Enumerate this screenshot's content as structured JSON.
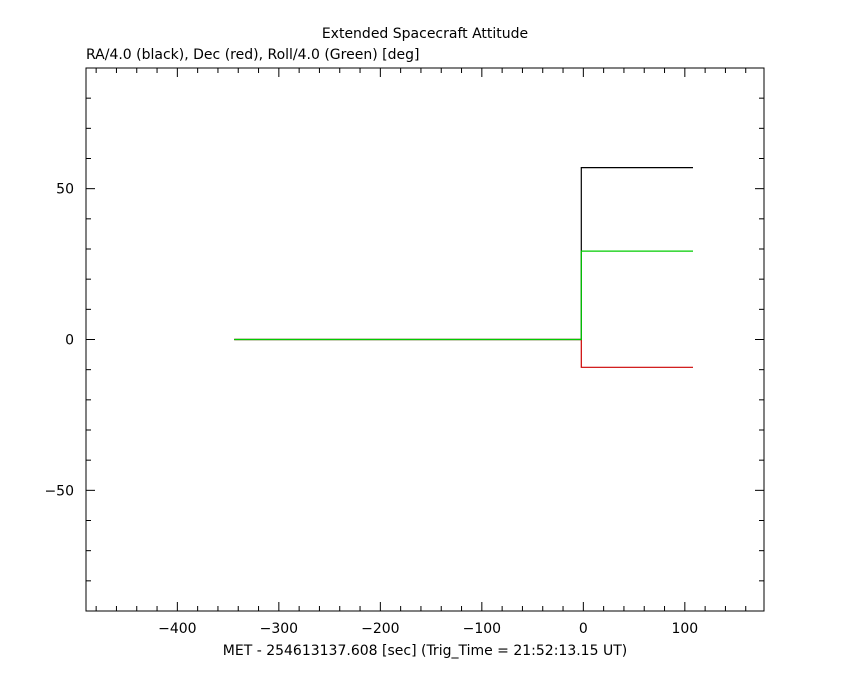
{
  "chart_data": {
    "type": "line",
    "title": "Extended Spacecraft Attitude",
    "ylabel": "RA/4.0 (black), Dec (red), Roll/4.0 (Green) [deg]",
    "xlabel": "MET - 254613137.608 [sec] (Trig_Time = 21:52:13.15 UT)",
    "xlim": [
      -490,
      178
    ],
    "ylim": [
      -90,
      90
    ],
    "x_ticks": [
      -400,
      -300,
      -200,
      -100,
      0,
      100
    ],
    "x_tick_labels": [
      "−400",
      "−300",
      "−200",
      "−100",
      "0",
      "100"
    ],
    "y_ticks": [
      -50,
      0,
      50
    ],
    "y_tick_labels": [
      "−50",
      "0",
      "50"
    ],
    "grid": false,
    "series": [
      {
        "color": "#000000",
        "x": [
          -344,
          -2,
          -2,
          108
        ],
        "y": [
          0,
          0,
          57,
          57
        ]
      },
      {
        "color": "#cc0000",
        "x": [
          -344,
          -2,
          -2,
          108
        ],
        "y": [
          0,
          0,
          -9.2,
          -9.2
        ]
      },
      {
        "color": "#00cc00",
        "x": [
          -344,
          -2,
          -2,
          108
        ],
        "y": [
          0,
          0,
          29.3,
          29.3
        ]
      }
    ]
  }
}
